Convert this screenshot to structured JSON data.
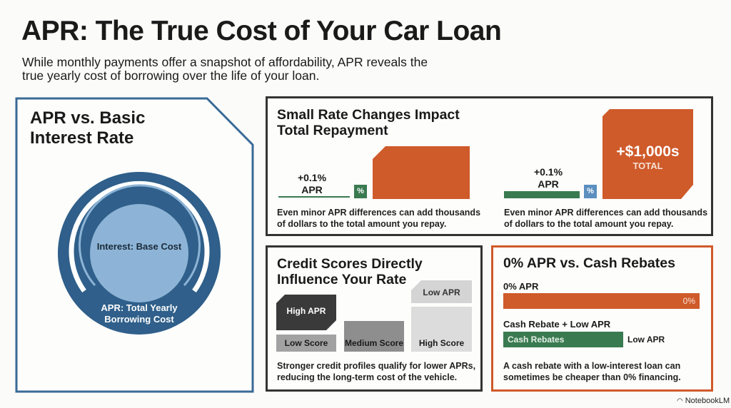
{
  "header": {
    "title": "APR: The True Cost of Your Car Loan",
    "subtitle": "While monthly payments offer a snapshot of affordability, APR reveals the true yearly cost of borrowing over the life of your loan."
  },
  "apr_panel": {
    "title": "APR vs. Basic Interest Rate",
    "inner_label": "Interest: Base Cost",
    "outer_label": "APR: Total Yearly Borrowing Cost"
  },
  "rate_panel": {
    "title": "Small Rate Changes Impact Total Repayment",
    "left": {
      "delta": "+0.1%",
      "unit": "APR",
      "pct": "%",
      "caption": "Even minor APR differences can add thousands of dollars to the total amount you repay."
    },
    "right": {
      "delta": "+0.1%",
      "unit": "APR",
      "pct": "%",
      "total": "+$1,000s",
      "total_label": "TOTAL",
      "caption": "Even minor APR differences can add thousands of dollars to the total amount you repay."
    }
  },
  "credit_panel": {
    "title": "Credit Scores Directly Influence Your Rate",
    "high_apr": "High APR",
    "low_apr": "Low APR",
    "low_score": "Low Score",
    "medium_score": "Medium Score",
    "high_score": "High Score",
    "caption": "Stronger credit profiles qualify for lower APRs, reducing the long-term cost of the vehicle."
  },
  "rebate_panel": {
    "title": "0% APR vs. Cash Rebates",
    "zero_label": "0% APR",
    "zero_bar": "0%",
    "rebate_label": "Cash Rebate + Low APR",
    "rebate_bar": "Cash Rebates",
    "low_apr": "Low APR",
    "caption": "A cash rebate with a low-interest loan can sometimes be cheaper than 0% financing."
  },
  "footer": {
    "brand": "NotebookLM"
  },
  "colors": {
    "orange": "#cf5a2a",
    "blue": "#2f5f8a",
    "light_blue": "#8db4d6",
    "green": "#3a7a50"
  }
}
